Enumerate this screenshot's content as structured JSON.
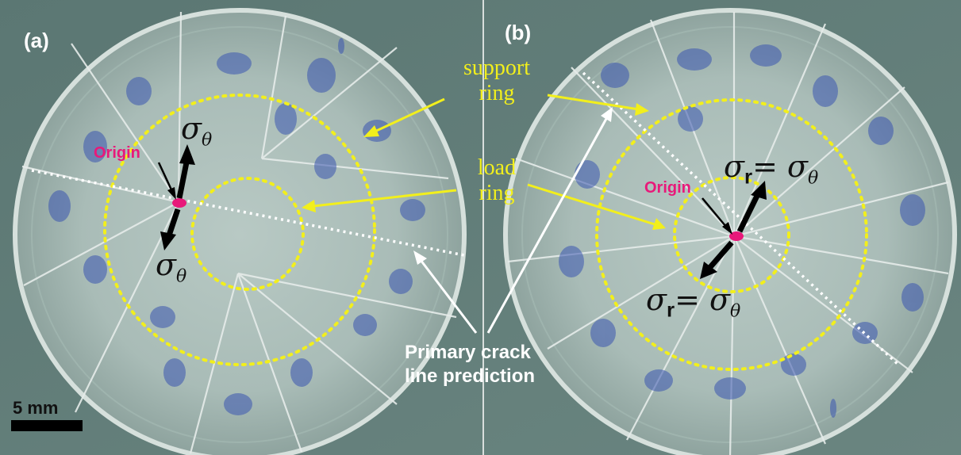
{
  "panels": [
    {
      "label": "(a)"
    },
    {
      "label": "(b)"
    }
  ],
  "annotations": {
    "support_ring": [
      "support",
      "ring"
    ],
    "load_ring": [
      "load",
      "ring"
    ],
    "origin": "Origin",
    "sigma": "σ",
    "theta": "θ",
    "r": "r",
    "equals": "=",
    "crack_line": [
      "Primary crack",
      "line prediction"
    ]
  },
  "scale_bar": {
    "label": "5 mm"
  },
  "colors": {
    "background": "#5f7b77",
    "ring_dots": "#f2ef1c",
    "origin_dot": "#e8197a",
    "crack_line": "#ffffff",
    "ink": "#2c3fa8"
  }
}
